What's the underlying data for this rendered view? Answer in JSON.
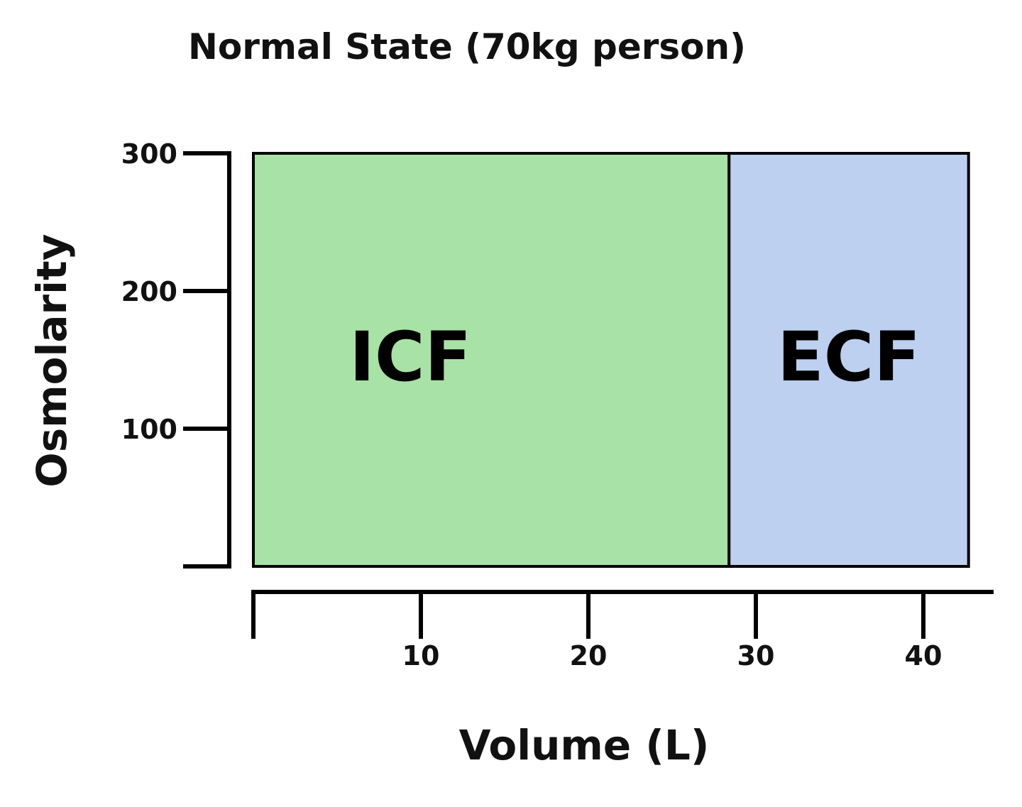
{
  "chart_data": {
    "type": "bar",
    "title": "Normal State (70kg person)",
    "xlabel": "Volume (L)",
    "ylabel": "Osmolarity",
    "xlim": [
      0,
      42
    ],
    "ylim": [
      0,
      300
    ],
    "xticks": [
      10,
      20,
      30,
      40
    ],
    "yticks": [
      100,
      200,
      300
    ],
    "grid": false,
    "regions": [
      {
        "label": "ICF",
        "x_start": 0,
        "x_end": 28.4,
        "osmolarity": 300,
        "color": "#a8e2a6"
      },
      {
        "label": "ECF",
        "x_start": 28.4,
        "x_end": 42.7,
        "osmolarity": 300,
        "color": "#bdd0f0"
      }
    ]
  }
}
